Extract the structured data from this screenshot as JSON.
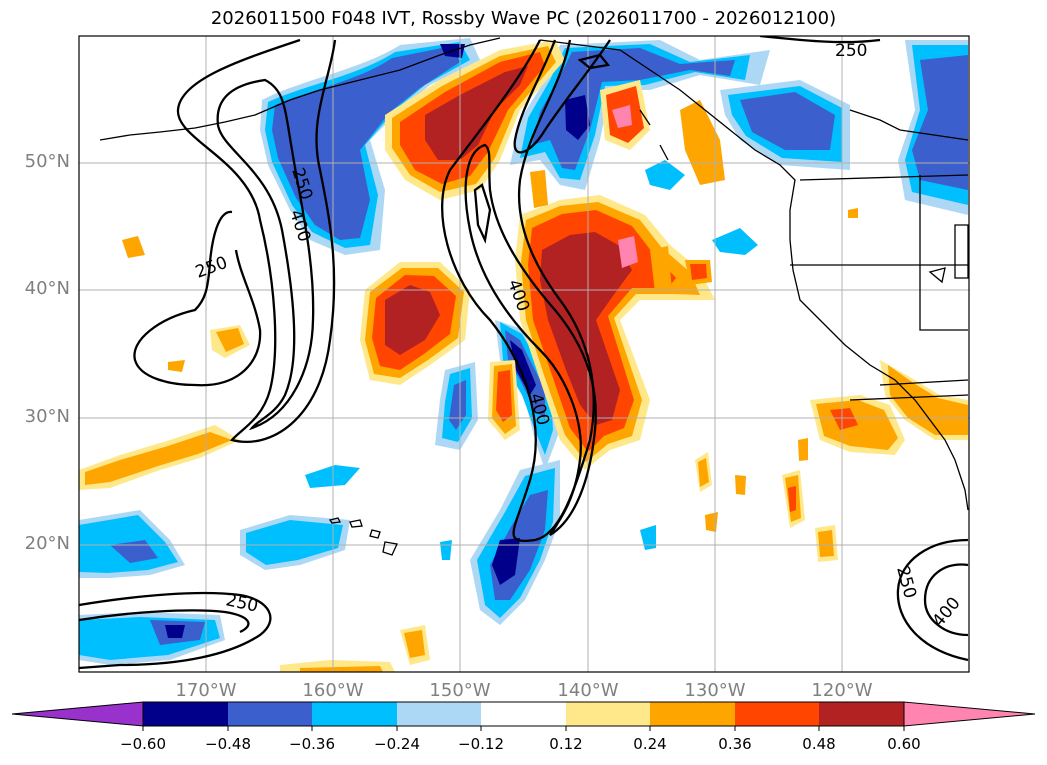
{
  "title": "2026011500 F048 IVT, Rossby Wave PC (2026011700 - 2026012100)",
  "map": {
    "projection": "PlateCarree",
    "lon_range": [
      -180,
      -110
    ],
    "lat_range": [
      10,
      60
    ],
    "lat_ticks": [
      "50°N",
      "40°N",
      "30°N",
      "20°N"
    ],
    "lon_ticks": [
      "170°W",
      "160°W",
      "150°W",
      "140°W",
      "130°W",
      "120°W"
    ],
    "contour_labels": [
      "250",
      "400",
      "250",
      "400",
      "250",
      "250",
      "400",
      "250",
      "400"
    ]
  },
  "colorbar": {
    "ticks": [
      "−0.60",
      "−0.48",
      "−0.36",
      "−0.24",
      "−0.12",
      "0.12",
      "0.24",
      "0.36",
      "0.48",
      "0.60"
    ],
    "colors": [
      "#9932cc",
      "#00008b",
      "#3b5fcd",
      "#00bfff",
      "#add8f5",
      "#ffffff",
      "#ffe88a",
      "#ffa500",
      "#ff4500",
      "#b22222",
      "#ff85b0"
    ]
  },
  "palette": {
    "neg_strong": "#00008b",
    "neg_mid": "#3b5fcd",
    "neg_light": "#00bfff",
    "neg_pale": "#add8f5",
    "pos_pale": "#ffe88a",
    "pos_light": "#ffa500",
    "pos_mid": "#ff4500",
    "pos_strong": "#b22222",
    "pos_max": "#ff85b0",
    "grid": "#b0b0b0"
  }
}
